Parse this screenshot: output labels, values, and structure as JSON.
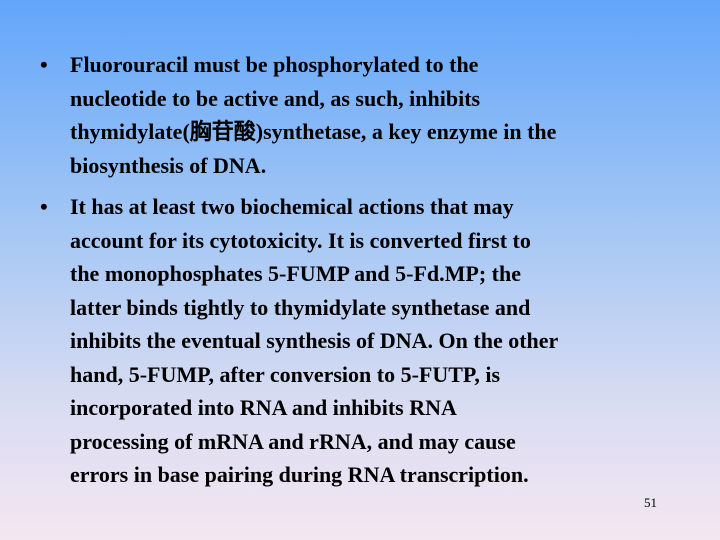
{
  "slide": {
    "bullets": [
      {
        "marker": "•",
        "lines": [
          "Fluorouracil must be phosphorylated to the",
          "nucleotide to be active and, as such, inhibits",
          "thymidylate(胸苷酸)synthetase, a key enzyme in the",
          "biosynthesis of DNA."
        ]
      },
      {
        "marker": "•",
        "lines": [
          "It has at least two biochemical actions that may",
          "account for its cytotoxicity. It is converted first to",
          "the monophosphates 5-FUMP and 5-Fd.MP; the",
          "latter binds tightly to thymidylate synthetase and",
          "inhibits the eventual synthesis of DNA. On the other",
          "hand, 5-FUMP, after conversion to 5-FUTP, is",
          "incorporated into RNA and inhibits RNA",
          "processing of mRNA and rRNA, and may cause",
          "errors in base pairing during RNA transcription."
        ]
      }
    ],
    "page_number": "51"
  }
}
